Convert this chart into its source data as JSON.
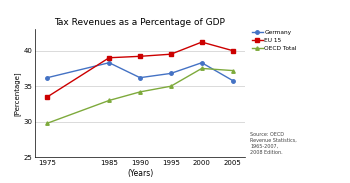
{
  "title": "Tax Revenues as a Percentage of GDP",
  "xlabel": "(Years)",
  "ylabel": "[Percentage]",
  "years": [
    1975,
    1985,
    1990,
    1995,
    2000,
    2005
  ],
  "germany": [
    36.2,
    38.3,
    36.2,
    36.8,
    38.3,
    35.8
  ],
  "eu15": [
    33.5,
    39.0,
    39.2,
    39.5,
    41.2,
    40.0
  ],
  "oecd": [
    29.8,
    33.0,
    34.2,
    35.0,
    37.5,
    37.2
  ],
  "germany_color": "#4472C4",
  "eu15_color": "#CC0000",
  "oecd_color": "#7EAA3C",
  "ylim_min": 25,
  "ylim_max": 43,
  "yticks": [
    25,
    30,
    35,
    40
  ],
  "legend_labels": [
    "Germany",
    "EU 15",
    "OECD Total"
  ],
  "source_text": "Source: OECD\nRevenue Statistics,\n1965-2007,\n2008 Edition.",
  "background_color": "#FFFFFF",
  "plot_bg_color": "#FFFFFF",
  "grid_color": "#CCCCCC"
}
